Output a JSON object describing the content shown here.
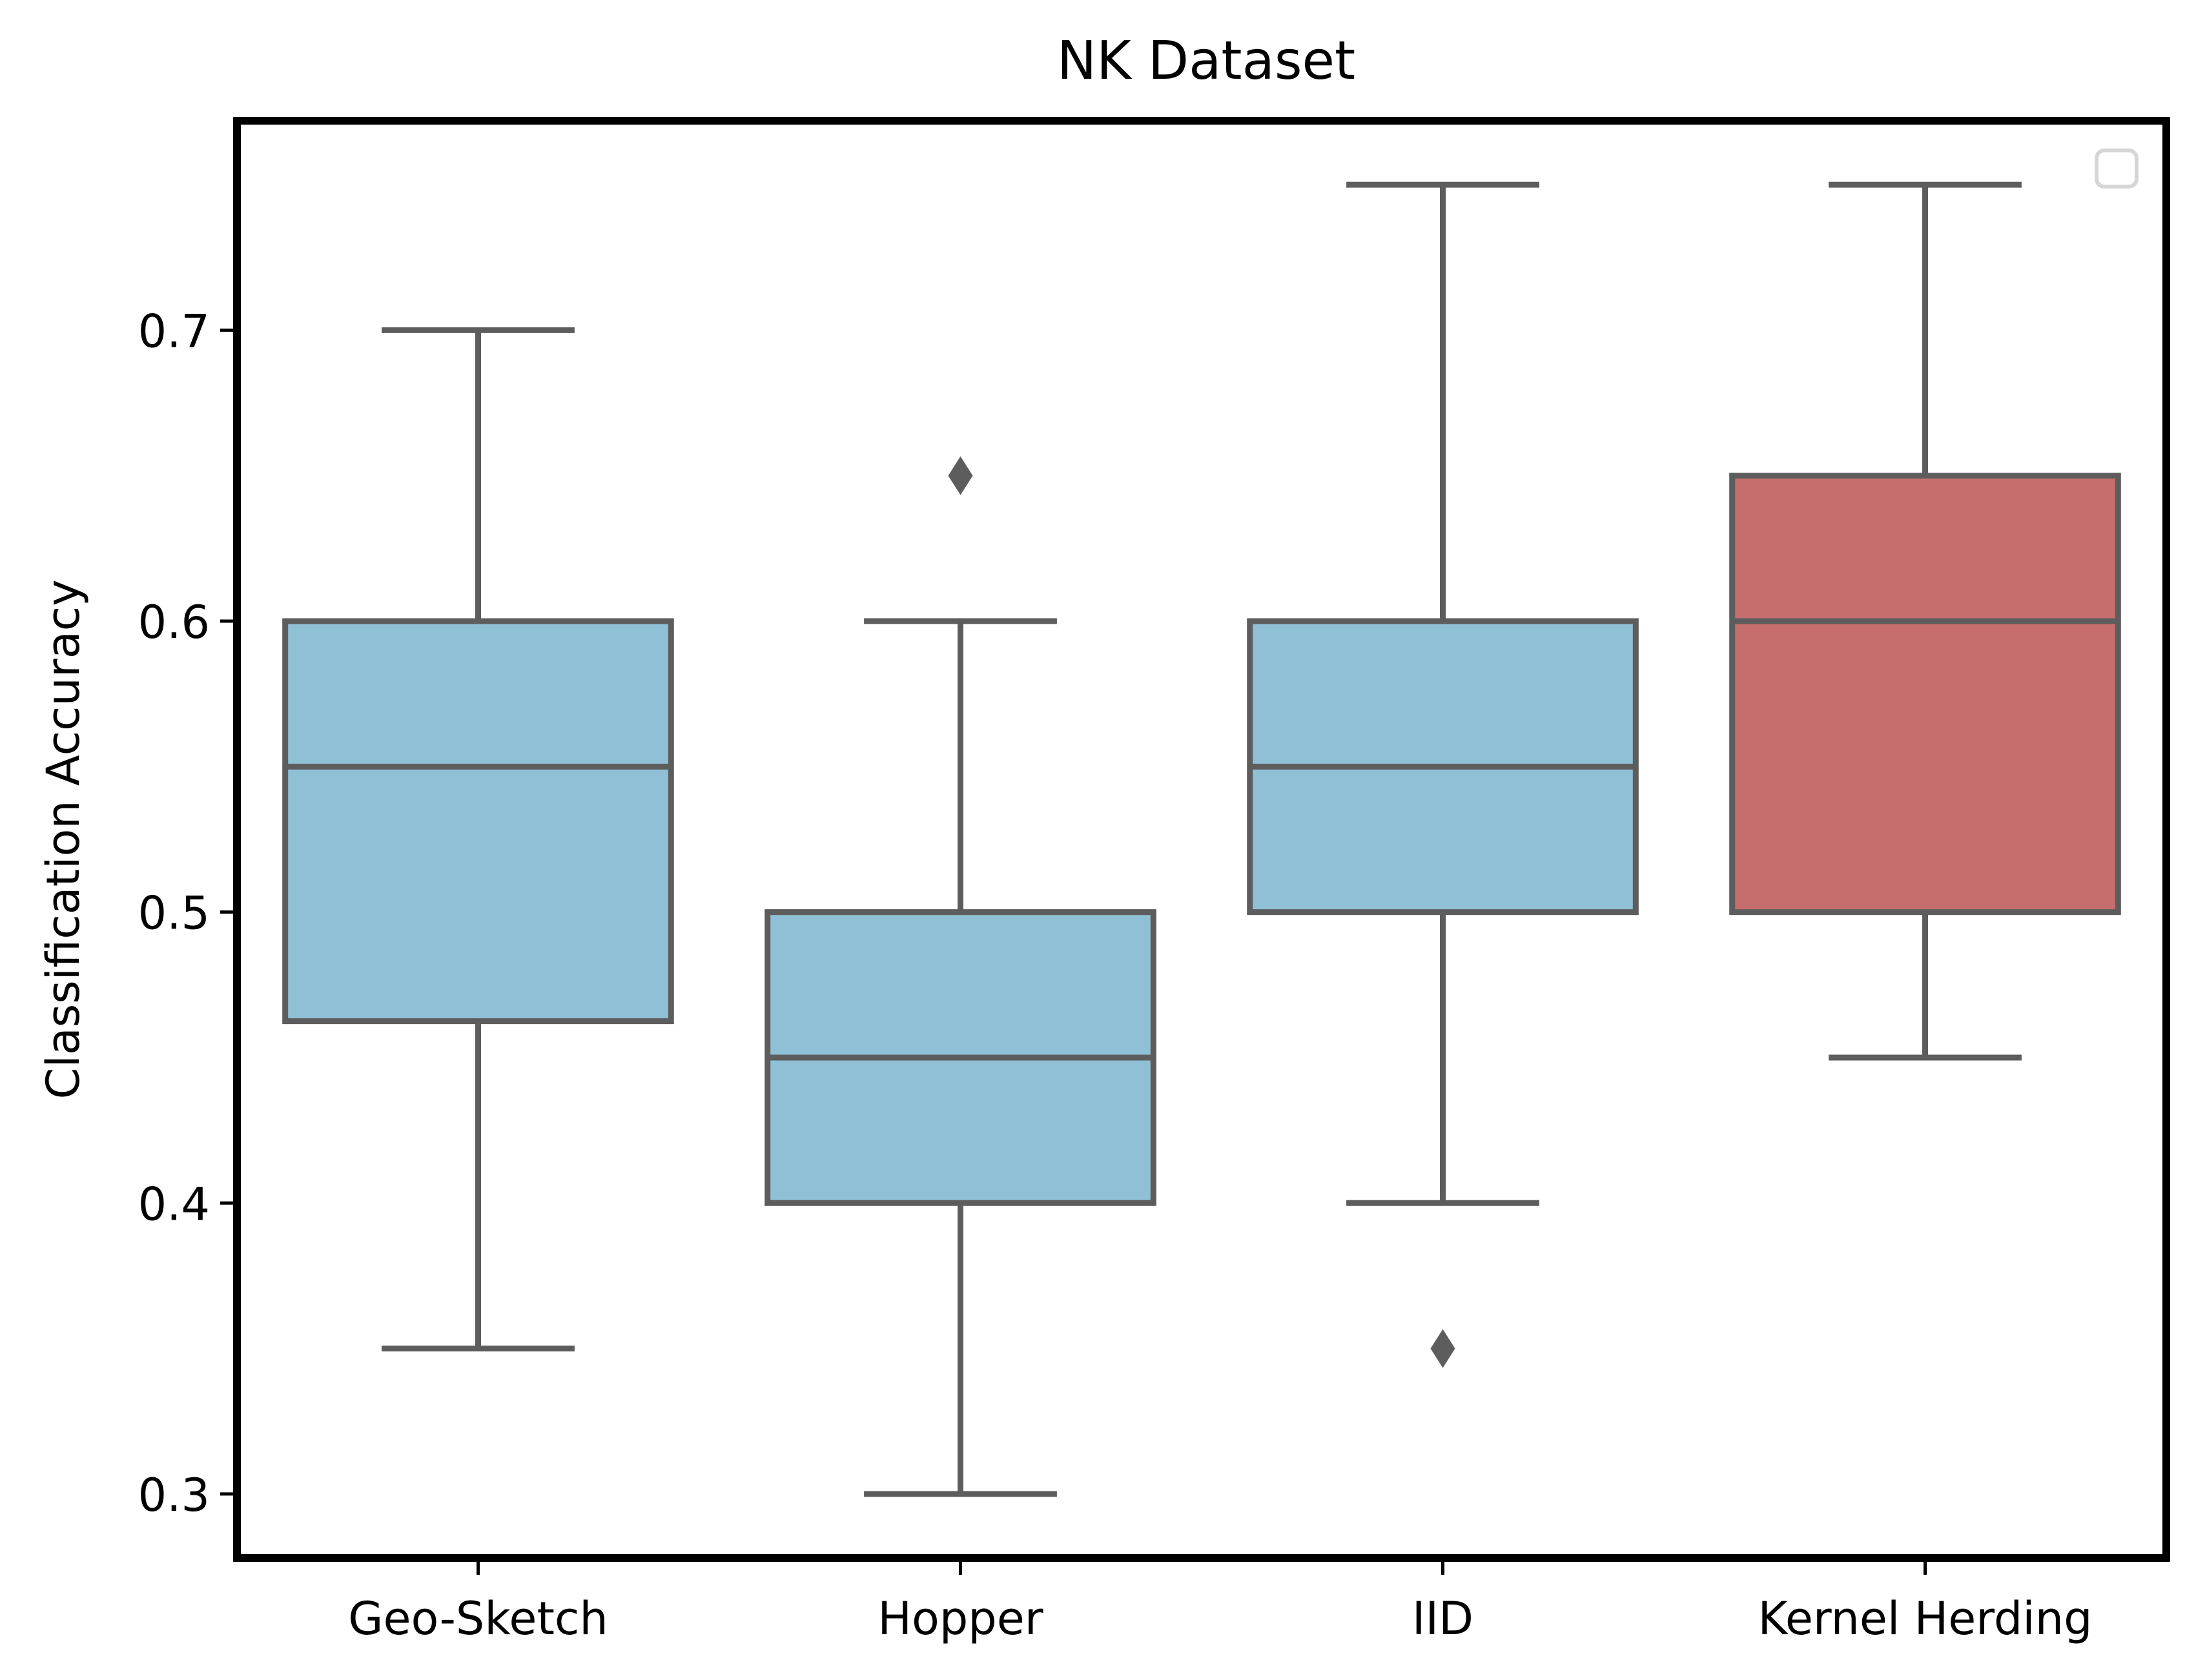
{
  "chart_data": {
    "type": "boxplot",
    "title": "NK Dataset",
    "xlabel": "",
    "ylabel": "Classification Accuracy",
    "categories": [
      "Geo-Sketch",
      "Hopper",
      "IID",
      "Kernel Herding"
    ],
    "yticks": [
      0.3,
      0.4,
      0.5,
      0.6,
      0.7
    ],
    "ytick_labels": [
      "0.3",
      "0.4",
      "0.5",
      "0.6",
      "0.7"
    ],
    "ylim": [
      0.278,
      0.772
    ],
    "grid": false,
    "legend": {
      "placement": "upper right",
      "entries": []
    },
    "boxes": [
      {
        "category": "Geo-Sketch",
        "whisker_low": 0.35,
        "q1": 0.4625,
        "median": 0.55,
        "q3": 0.6,
        "whisker_high": 0.7,
        "outliers": [],
        "color": "#8fc0d6"
      },
      {
        "category": "Hopper",
        "whisker_low": 0.3,
        "q1": 0.4,
        "median": 0.45,
        "q3": 0.5,
        "whisker_high": 0.6,
        "outliers": [
          0.65
        ],
        "color": "#8fc0d6"
      },
      {
        "category": "IID",
        "whisker_low": 0.4,
        "q1": 0.5,
        "median": 0.55,
        "q3": 0.6,
        "whisker_high": 0.75,
        "outliers": [
          0.35
        ],
        "color": "#8fc0d6"
      },
      {
        "category": "Kernel Herding",
        "whisker_low": 0.45,
        "q1": 0.5,
        "median": 0.6,
        "q3": 0.65,
        "whisker_high": 0.75,
        "outliers": [],
        "color": "#c66e6e"
      }
    ],
    "colors": {
      "line": "#5d5d5d",
      "frame": "#000000",
      "legend_border": "#d6d6d6"
    }
  }
}
